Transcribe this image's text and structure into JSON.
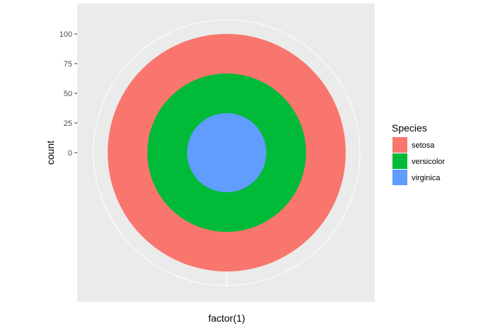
{
  "chart_data": {
    "type": "pie",
    "coord": "polar",
    "xlabel": "factor(1)",
    "ylabel": "count",
    "yticks": [
      0,
      25,
      50,
      75,
      100
    ],
    "ylim": [
      0,
      100
    ],
    "grid": true,
    "legend": {
      "title": "Species",
      "position": "right",
      "entries": [
        "setosa",
        "versicolor",
        "virginica"
      ]
    },
    "series": [
      {
        "name": "setosa",
        "value": 50,
        "color": "#F8766D"
      },
      {
        "name": "versicolor",
        "value": 50,
        "color": "#00BA38"
      },
      {
        "name": "virginica",
        "value": 50,
        "color": "#619CFF"
      }
    ],
    "panel_background": "#EBEBEB",
    "grid_color": "#FFFFFF"
  }
}
